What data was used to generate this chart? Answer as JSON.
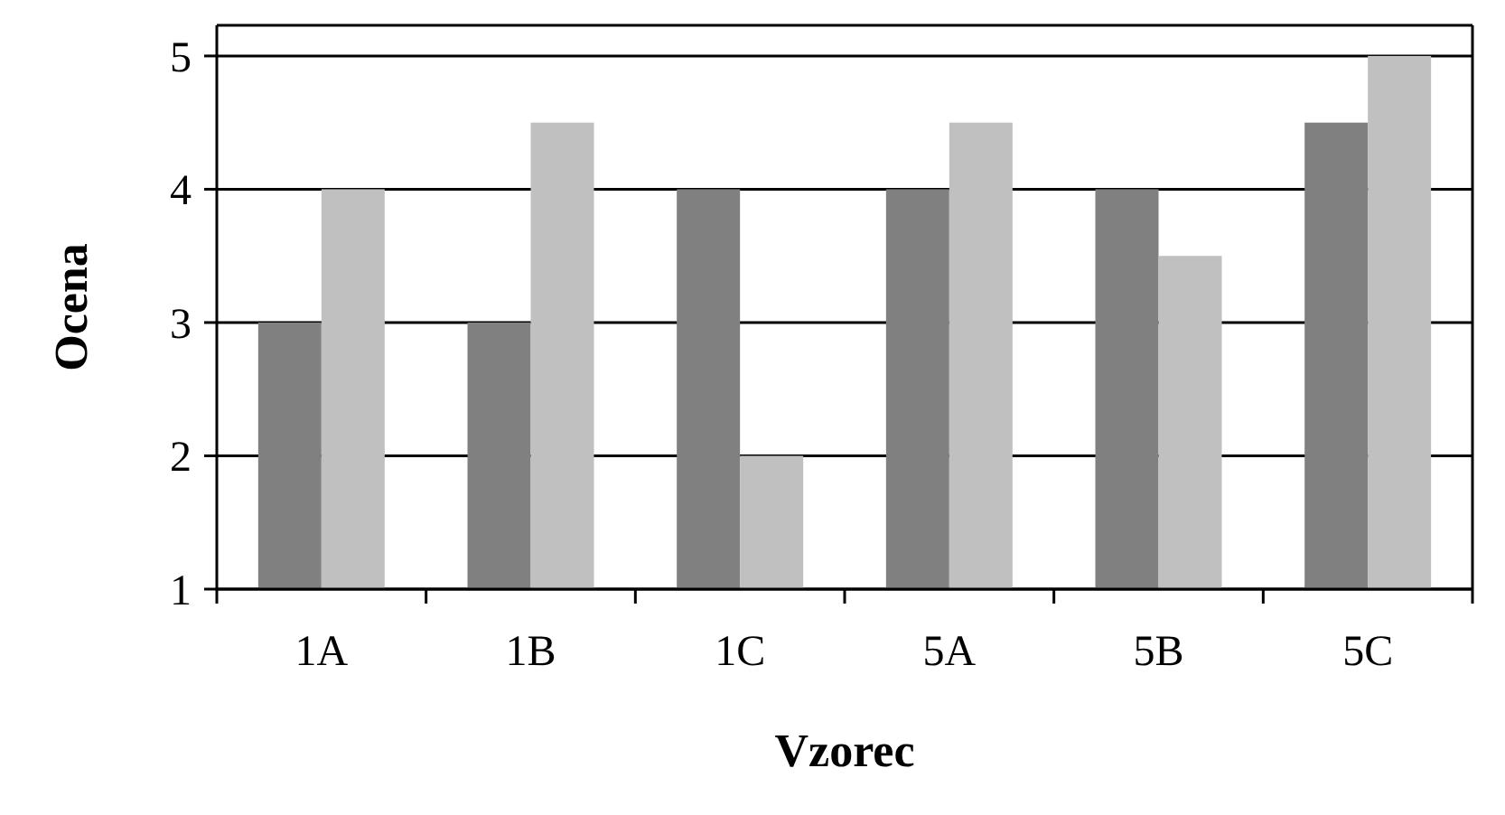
{
  "chart_data": {
    "type": "bar",
    "xlabel": "Vzorec",
    "ylabel": "Ocena",
    "categories": [
      "1A",
      "1B",
      "1C",
      "5A",
      "5B",
      "5C"
    ],
    "series": [
      {
        "color": "#808080",
        "values": [
          3,
          3,
          4,
          4,
          4,
          4.5
        ]
      },
      {
        "color": "#c0c0c0",
        "values": [
          4,
          4.5,
          2,
          4.5,
          3.5,
          5
        ]
      }
    ],
    "ylim": [
      1,
      5.23
    ],
    "yticks": [
      1,
      2,
      3,
      4,
      5
    ],
    "grid": "y"
  }
}
